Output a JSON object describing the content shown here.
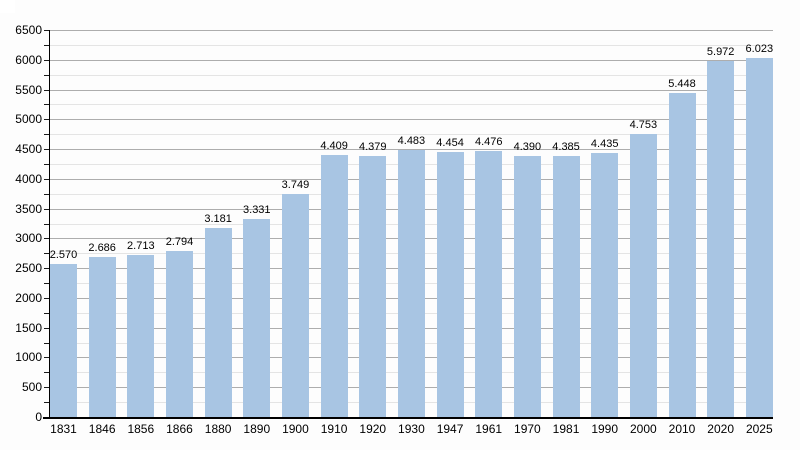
{
  "chart_data": {
    "type": "bar",
    "title": "",
    "xlabel": "",
    "ylabel": "",
    "categories": [
      "1831",
      "1846",
      "1856",
      "1866",
      "1880",
      "1890",
      "1900",
      "1910",
      "1920",
      "1930",
      "1947",
      "1961",
      "1970",
      "1981",
      "1990",
      "2000",
      "2010",
      "2020",
      "2025"
    ],
    "values": [
      2570,
      2686,
      2713,
      2794,
      3181,
      3331,
      3749,
      4409,
      4379,
      4483,
      4454,
      4476,
      4390,
      4385,
      4435,
      4753,
      5448,
      5972,
      6023
    ],
    "value_labels": [
      "2.570",
      "2.686",
      "2.713",
      "2.794",
      "3.181",
      "3.331",
      "3.749",
      "4.409",
      "4.379",
      "4.483",
      "4.454",
      "4.476",
      "4.390",
      "4.385",
      "4.435",
      "4.753",
      "5.448",
      "5.972",
      "6.023"
    ],
    "ylim": [
      0,
      6500
    ],
    "y_major_step": 500,
    "y_minor_step": 250,
    "y_tick_labels": [
      "0",
      "500",
      "1000",
      "1500",
      "2000",
      "2500",
      "3000",
      "3500",
      "4000",
      "4500",
      "5000",
      "5500",
      "6000",
      "6500"
    ],
    "grid": true,
    "legend": "none",
    "bar_color": "#a8c5e3",
    "major_grid_color": "#adadad",
    "minor_grid_color": "#e4e4e4",
    "axis_color": "#000000",
    "text_color": "#000000",
    "background_color": "#fdfdfd"
  }
}
